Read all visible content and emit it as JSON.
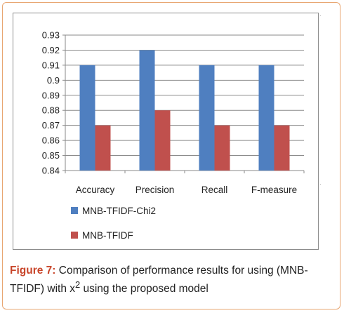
{
  "chart_data": {
    "type": "bar",
    "categories": [
      "Accuracy",
      "Precision",
      "Recall",
      "F-measure"
    ],
    "series": [
      {
        "name": "MNB-TFIDF-Chi2",
        "values": [
          0.91,
          0.92,
          0.91,
          0.91
        ],
        "color": "#4f7fc0"
      },
      {
        "name": "MNB-TFIDF",
        "values": [
          0.87,
          0.88,
          0.87,
          0.87
        ],
        "color": "#c0504d"
      }
    ],
    "ylim": [
      0.84,
      0.93
    ],
    "yticks": [
      "0.93",
      "0.92",
      "0.91",
      "0.9",
      "0.89",
      "0.88",
      "0.87",
      "0.86",
      "0.85",
      "0.84"
    ],
    "ytick_values": [
      0.93,
      0.92,
      0.91,
      0.9,
      0.89,
      0.88,
      0.87,
      0.86,
      0.85,
      0.84
    ],
    "grid": true,
    "legend_placement": "bottom-left",
    "title": "",
    "xlabel": "",
    "ylabel": ""
  },
  "caption": {
    "label": "Figure 7:",
    "text_part1": " Comparison of performance results for using (MNB-TFIDF) with x",
    "superscript": "2",
    "text_part2": " using the proposed model"
  },
  "corner_marks": {
    "top": ".",
    "bottom": "."
  }
}
